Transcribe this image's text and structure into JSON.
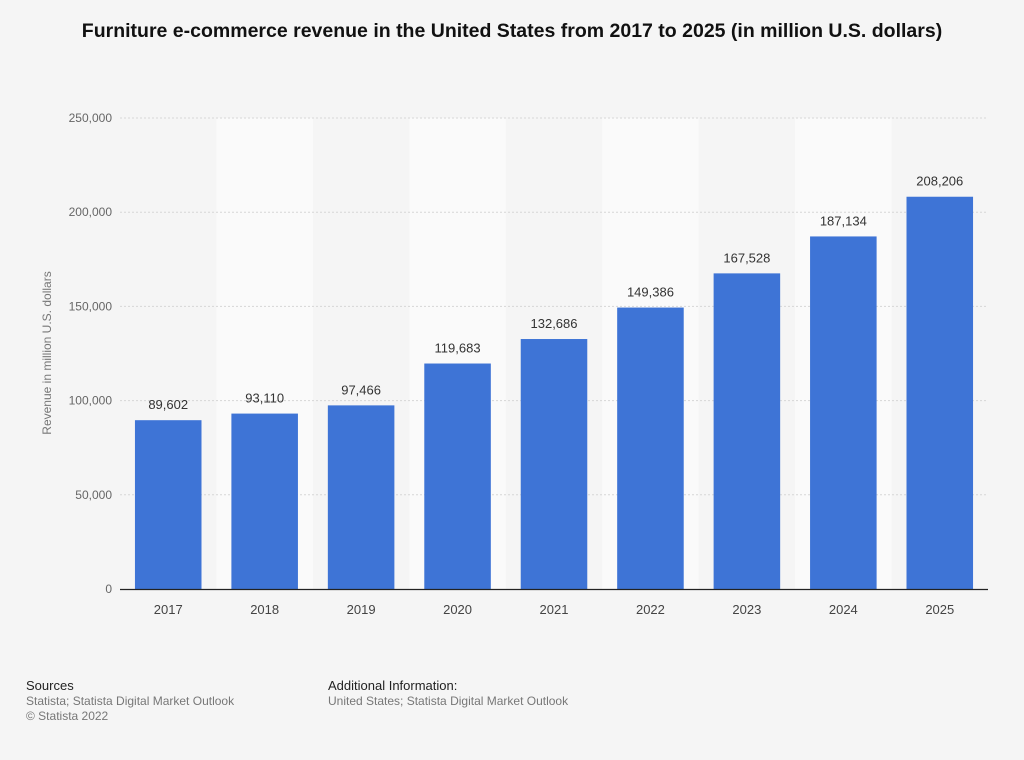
{
  "chart_data": {
    "type": "bar",
    "title": "Furniture e-commerce revenue in the United States from 2017 to 2025 (in million U.S. dollars)",
    "xlabel": "",
    "ylabel": "Revenue in million U.S. dollars",
    "categories": [
      "2017",
      "2018",
      "2019",
      "2020",
      "2021",
      "2022",
      "2023",
      "2024",
      "2025"
    ],
    "values": [
      89602,
      93110,
      97466,
      119683,
      132686,
      149386,
      167528,
      187134,
      208206
    ],
    "value_labels": [
      "89,602",
      "93,110",
      "97,466",
      "119,683",
      "132,686",
      "149,386",
      "167,528",
      "187,134",
      "208,206"
    ],
    "ylim": [
      0,
      250000
    ],
    "yticks": [
      0,
      50000,
      100000,
      150000,
      200000,
      250000
    ],
    "ytick_labels": [
      "0",
      "50,000",
      "100,000",
      "150,000",
      "200,000",
      "250,000"
    ],
    "grid": true,
    "bar_color": "#3e74d6"
  },
  "footer": {
    "sources_heading": "Sources",
    "sources_line1": "Statista; Statista Digital Market Outlook",
    "sources_line2": "© Statista 2022",
    "info_heading": "Additional Information:",
    "info_line1": "United States; Statista Digital Market Outlook"
  }
}
